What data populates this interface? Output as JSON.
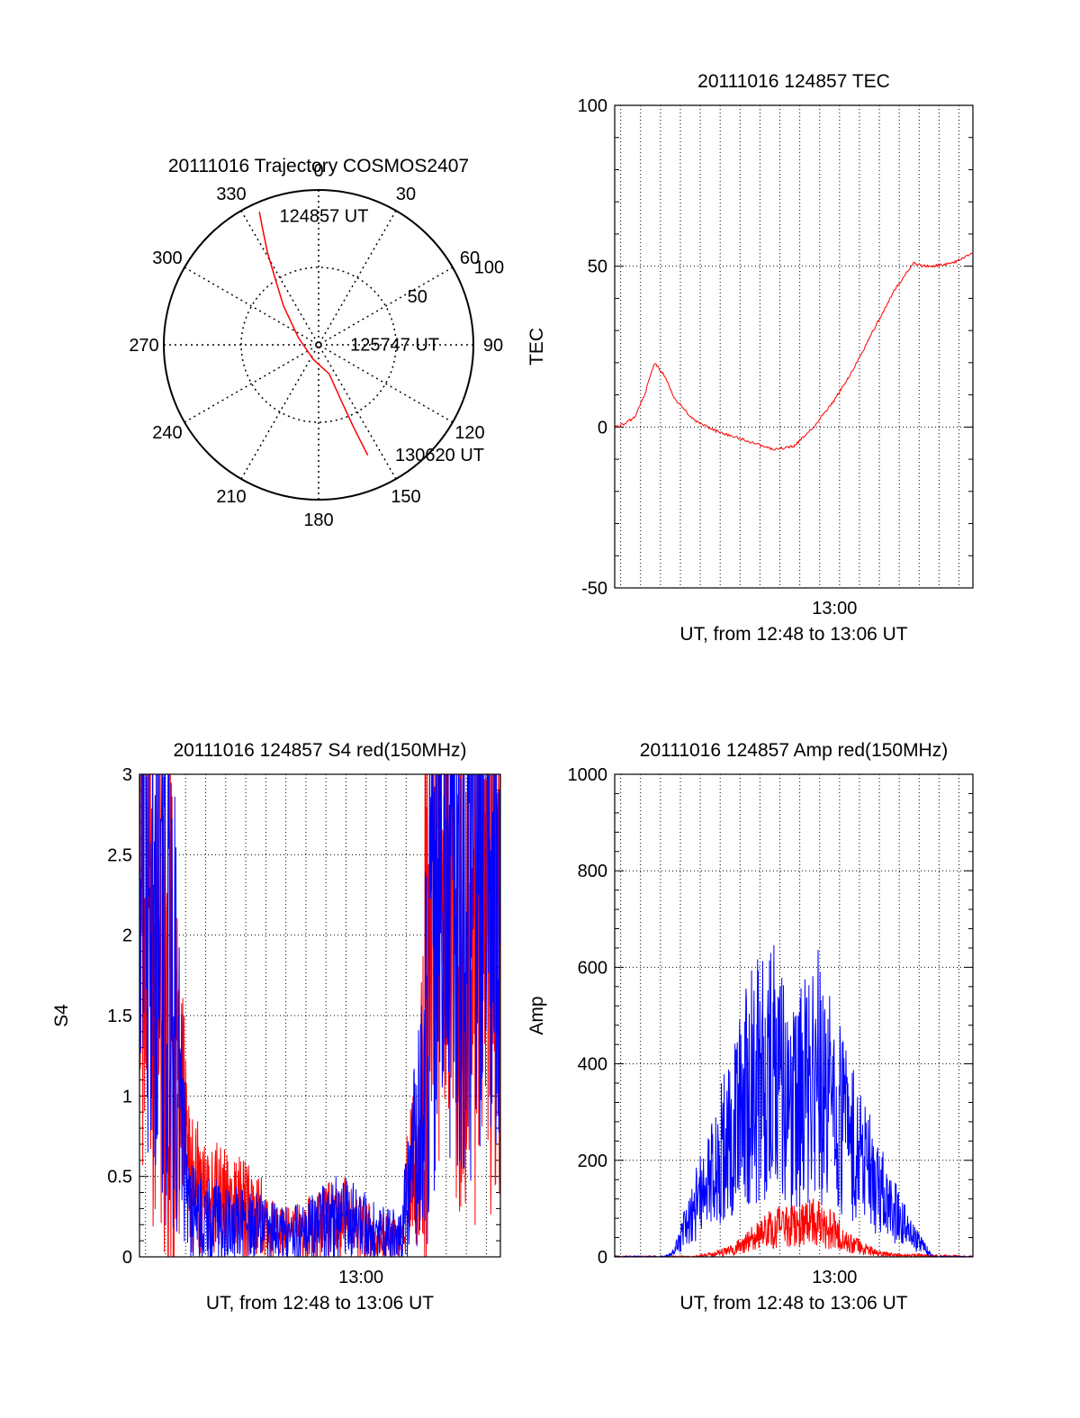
{
  "chart_data": [
    {
      "type": "polar",
      "title": "20111016 Trajectory COSMOS2407",
      "azimuth_labels": [
        "0",
        "30",
        "60",
        "90",
        "120",
        "150",
        "180",
        "210",
        "240",
        "270",
        "300",
        "330"
      ],
      "elevation_labels": [
        "50",
        "100"
      ],
      "elevation_range": [
        0,
        100
      ],
      "series": [
        {
          "color": "#ff0000",
          "points": [
            {
              "az": 336,
              "el": 6
            },
            {
              "az": 334,
              "el": 18
            },
            {
              "az": 331,
              "el": 32
            },
            {
              "az": 327,
              "el": 48
            },
            {
              "az": 318,
              "el": 66
            },
            {
              "az": 290,
              "el": 86
            },
            {
              "az": 200,
              "el": 90
            },
            {
              "az": 160,
              "el": 80
            },
            {
              "az": 158,
              "el": 62
            },
            {
              "az": 157,
              "el": 42
            },
            {
              "az": 156,
              "el": 22
            }
          ]
        }
      ],
      "annotations": [
        {
          "text": "124857 UT",
          "az": 338,
          "el": 10
        },
        {
          "text": "125747 UT",
          "az": 88,
          "el": 88
        },
        {
          "text": "130620 UT",
          "az": 150,
          "el": 18
        }
      ],
      "grid": true
    },
    {
      "type": "line",
      "title": "20111016 124857 TEC",
      "xlabel": "UT, from 12:48 to 13:06 UT",
      "ylabel": "TEC",
      "xlim": [
        0,
        18
      ],
      "ylim": [
        -50,
        100
      ],
      "x_ticks": [
        {
          "value": 11.05,
          "label": "13:00"
        }
      ],
      "y_ticks": [
        "-50",
        "0",
        "50",
        "100"
      ],
      "grid": true,
      "series": [
        {
          "color": "#ff0000",
          "x": [
            0.0,
            0.5,
            1.0,
            1.5,
            2.0,
            2.5,
            3.0,
            4.0,
            5.0,
            6.0,
            7.0,
            8.0,
            9.0,
            9.5,
            10.0,
            11.0,
            12.0,
            13.0,
            14.0,
            15.0,
            15.5,
            16.0,
            17.0,
            18.0
          ],
          "y": [
            0,
            1,
            3,
            10,
            20,
            16,
            9,
            2,
            -1,
            -3,
            -5,
            -7,
            -6,
            -3,
            0,
            8,
            18,
            30,
            42,
            51,
            50,
            50,
            51,
            54
          ]
        }
      ]
    },
    {
      "type": "line",
      "title": "20111016 124857 S4 red(150MHz)",
      "xlabel": "UT, from 12:48 to 13:06 UT",
      "ylabel": "S4",
      "xlim": [
        0,
        18
      ],
      "ylim": [
        0,
        3
      ],
      "x_ticks": [
        {
          "value": 11.05,
          "label": "13:00"
        }
      ],
      "y_ticks": [
        "0",
        "0.5",
        "1",
        "1.5",
        "2",
        "2.5",
        "3"
      ],
      "grid": true,
      "series": [
        {
          "color": "#ff0000",
          "x": [
            0.0,
            0.5,
            1.0,
            1.5,
            2.0,
            2.5,
            3.0,
            3.5,
            4.0,
            5.0,
            6.0,
            7.0,
            8.0,
            9.0,
            10.0,
            11.0,
            12.0,
            13.0,
            14.0,
            15.0,
            16.0,
            17.0,
            18.0
          ],
          "y": [
            2.5,
            2.0,
            1.6,
            1.4,
            1.0,
            0.5,
            0.4,
            0.35,
            0.35,
            0.3,
            0.25,
            0.15,
            0.15,
            0.2,
            0.25,
            0.2,
            0.12,
            0.1,
            0.9,
            2.4,
            2.0,
            1.9,
            2.2
          ]
        },
        {
          "color": "#0000ff",
          "x": [
            0.0,
            0.5,
            1.0,
            1.5,
            2.0,
            2.5,
            3.0,
            3.5,
            4.0,
            5.0,
            6.0,
            7.0,
            8.0,
            9.0,
            10.0,
            11.0,
            12.0,
            13.0,
            14.0,
            15.0,
            16.0,
            17.0,
            18.0
          ],
          "y": [
            2.6,
            2.4,
            2.3,
            1.8,
            1.0,
            0.3,
            0.25,
            0.25,
            0.22,
            0.2,
            0.18,
            0.14,
            0.15,
            0.2,
            0.25,
            0.2,
            0.15,
            0.12,
            0.8,
            2.5,
            2.3,
            2.2,
            2.4
          ]
        }
      ]
    },
    {
      "type": "line",
      "title": "20111016 124857 Amp red(150MHz)",
      "xlabel": "UT, from 12:48 to 13:06 UT",
      "ylabel": "Amp",
      "xlim": [
        0,
        18
      ],
      "ylim": [
        0,
        1000
      ],
      "x_ticks": [
        {
          "value": 11.05,
          "label": "13:00"
        }
      ],
      "y_ticks": [
        "0",
        "200",
        "400",
        "600",
        "800",
        "1000"
      ],
      "grid": true,
      "series": [
        {
          "color": "#ff0000",
          "x": [
            0.0,
            4.0,
            5.0,
            6.0,
            7.0,
            8.0,
            9.0,
            10.0,
            11.0,
            12.0,
            13.0,
            14.0,
            18.0
          ],
          "y": [
            0,
            0,
            5,
            15,
            40,
            60,
            65,
            70,
            55,
            25,
            10,
            3,
            0
          ]
        },
        {
          "color": "#0000ff",
          "x": [
            0.0,
            2.5,
            3.0,
            4.0,
            5.0,
            6.0,
            7.0,
            8.0,
            9.0,
            10.0,
            11.0,
            12.0,
            13.0,
            14.0,
            15.0,
            16.0,
            18.0
          ],
          "y": [
            0,
            0,
            10,
            100,
            180,
            280,
            360,
            380,
            300,
            400,
            300,
            240,
            160,
            100,
            40,
            0,
            0
          ]
        }
      ]
    }
  ]
}
